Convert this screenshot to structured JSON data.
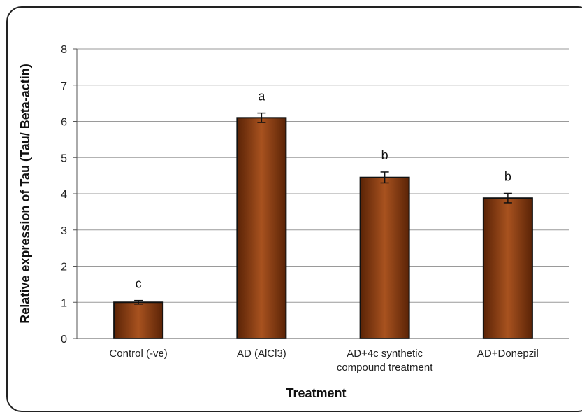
{
  "chart_data": {
    "type": "bar",
    "categories": [
      [
        "Control (-ve)"
      ],
      [
        "AD (AlCl3)"
      ],
      [
        "AD+4c synthetic",
        "compound treatment"
      ],
      [
        "AD+Donepzil"
      ]
    ],
    "values": [
      1.0,
      6.1,
      4.45,
      3.88
    ],
    "error": [
      0.05,
      0.13,
      0.15,
      0.13
    ],
    "significance_labels": [
      "c",
      "a",
      "b",
      "b"
    ],
    "xlabel": "Treatment",
    "ylabel": "Relative expression of Tau (Tau/ Beta-actin)",
    "ylim": [
      0,
      8
    ],
    "yticks": [
      0,
      1,
      2,
      3,
      4,
      5,
      6,
      7,
      8
    ],
    "grid": true,
    "colors": {
      "bar": "#8B3A0F",
      "bar_dark": "#5a2306",
      "bar_light": "#a8521f",
      "grid": "#9a9a9a"
    }
  }
}
